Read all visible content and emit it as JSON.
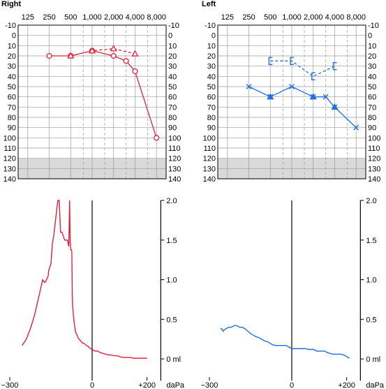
{
  "panels": {
    "right_title": "Right",
    "left_title": "Left"
  },
  "colors": {
    "right": "#e0203c",
    "left": "#1f6fe0",
    "grid": "#9a9a9a",
    "shade": "#d9d9d9"
  },
  "chart_data": [
    {
      "type": "line",
      "panel": "Right audiogram",
      "title": "Right",
      "x_ticks": [
        "125",
        "250",
        "500",
        "1,000",
        "2,000",
        "4,000",
        "8,000"
      ],
      "y_ticks": [
        "-10",
        "0",
        "10",
        "20",
        "30",
        "40",
        "50",
        "60",
        "70",
        "80",
        "90",
        "100",
        "110",
        "120",
        "130",
        "140"
      ],
      "ylim": [
        -10,
        140
      ],
      "shaded_range": [
        120,
        140
      ],
      "series": [
        {
          "symbol": "circle",
          "line": "solid",
          "x": [
            250,
            500,
            1000,
            2000,
            3000,
            4000,
            8000
          ],
          "y": [
            20,
            20,
            15,
            20,
            25,
            35,
            100
          ]
        },
        {
          "symbol": "triangle",
          "line": "dashed",
          "x": [
            500,
            1000,
            2000,
            4000
          ],
          "y": [
            20,
            15,
            13,
            18
          ]
        }
      ]
    },
    {
      "type": "line",
      "panel": "Left audiogram",
      "title": "Left",
      "x_ticks": [
        "125",
        "250",
        "500",
        "1,000",
        "2,000",
        "4,000",
        "8,000"
      ],
      "y_ticks": [
        "-10",
        "0",
        "10",
        "20",
        "30",
        "40",
        "50",
        "60",
        "70",
        "80",
        "90",
        "100",
        "110",
        "120",
        "130",
        "140"
      ],
      "ylim": [
        -10,
        140
      ],
      "shaded_range": [
        120,
        140
      ],
      "series": [
        {
          "symbol": "cross",
          "line": "solid",
          "x": [
            250,
            500,
            1000,
            2000,
            3000,
            4000,
            8000
          ],
          "y": [
            50,
            60,
            50,
            60,
            60,
            70,
            90
          ]
        },
        {
          "symbol": "triangle",
          "line": "none",
          "x": [
            500,
            2000,
            4000
          ],
          "y": [
            60,
            60,
            70
          ]
        },
        {
          "symbol": "bracket",
          "line": "dashed",
          "x": [
            500,
            1000,
            2000,
            4000
          ],
          "y": [
            25,
            25,
            40,
            30
          ]
        }
      ]
    },
    {
      "type": "line",
      "panel": "Right tympanogram",
      "x_ticks": [
        "−300",
        "0",
        "+200"
      ],
      "x_unit": "daPa",
      "y_ticks": [
        "2.0",
        "1.5",
        "1.0",
        "0.5",
        "0 ml"
      ],
      "xlim": [
        -300,
        250
      ],
      "ylim": [
        0,
        2
      ],
      "series": [
        {
          "x": [
            -255,
            -240,
            -225,
            -210,
            -200,
            -190,
            -180,
            -175,
            -170,
            -160,
            -158,
            -150,
            -145,
            -140,
            -135,
            -130,
            -125,
            -120,
            -115,
            -110,
            -105,
            -100,
            -95,
            -90,
            -85,
            -82,
            -80,
            -78,
            -76,
            -74,
            -72,
            -70,
            -68,
            -66,
            -64,
            -62,
            -60,
            -55,
            -50,
            -45,
            -40,
            -35,
            -30,
            -25,
            -20,
            -15,
            -10,
            0,
            10,
            20,
            30,
            40,
            50,
            60,
            70,
            80,
            90,
            100,
            110,
            120,
            130,
            140,
            150,
            160,
            170,
            180,
            190,
            200
          ],
          "y": [
            0.17,
            0.25,
            0.38,
            0.55,
            0.7,
            0.85,
            1.0,
            0.97,
            0.97,
            1.05,
            1.12,
            1.2,
            1.45,
            1.55,
            1.7,
            1.85,
            2.0,
            2.0,
            1.6,
            1.6,
            1.55,
            1.5,
            1.5,
            1.5,
            1.42,
            2.0,
            1.5,
            1.38,
            1.38,
            1.35,
            0.75,
            0.62,
            0.55,
            0.48,
            0.42,
            0.38,
            0.34,
            0.3,
            0.26,
            0.24,
            0.22,
            0.2,
            0.2,
            0.18,
            0.17,
            0.16,
            0.14,
            0.12,
            0.1,
            0.1,
            0.08,
            0.07,
            0.06,
            0.05,
            0.05,
            0.04,
            0.04,
            0.03,
            0.02,
            0.02,
            0.02,
            0.02,
            0.01,
            0.01,
            0.01,
            0.01,
            0.01,
            0.01
          ]
        }
      ]
    },
    {
      "type": "line",
      "panel": "Left tympanogram",
      "x_ticks": [
        "−300",
        "0",
        "+200"
      ],
      "x_unit": "daPa",
      "y_ticks": [
        "2.0",
        "1.5",
        "1.0",
        "0.5",
        "0 ml"
      ],
      "xlim": [
        -300,
        250
      ],
      "ylim": [
        0,
        2
      ],
      "series": [
        {
          "x": [
            -260,
            -255,
            -250,
            -245,
            -240,
            -230,
            -220,
            -210,
            -200,
            -190,
            -180,
            -170,
            -160,
            -150,
            -140,
            -130,
            -120,
            -110,
            -100,
            -90,
            -80,
            -70,
            -60,
            -50,
            -40,
            -30,
            -20,
            -10,
            0,
            10,
            20,
            30,
            40,
            50,
            60,
            70,
            80,
            90,
            100,
            110,
            120,
            130,
            140,
            150,
            160,
            170,
            180,
            190,
            200,
            210
          ],
          "y": [
            0.38,
            0.38,
            0.35,
            0.37,
            0.38,
            0.4,
            0.4,
            0.42,
            0.42,
            0.4,
            0.4,
            0.38,
            0.35,
            0.32,
            0.3,
            0.28,
            0.27,
            0.25,
            0.23,
            0.22,
            0.2,
            0.18,
            0.17,
            0.17,
            0.17,
            0.17,
            0.17,
            0.15,
            0.13,
            0.13,
            0.13,
            0.13,
            0.13,
            0.13,
            0.12,
            0.12,
            0.12,
            0.1,
            0.1,
            0.1,
            0.1,
            0.08,
            0.07,
            0.06,
            0.06,
            0.06,
            0.06,
            0.05,
            0.03,
            0.01
          ]
        }
      ]
    }
  ]
}
